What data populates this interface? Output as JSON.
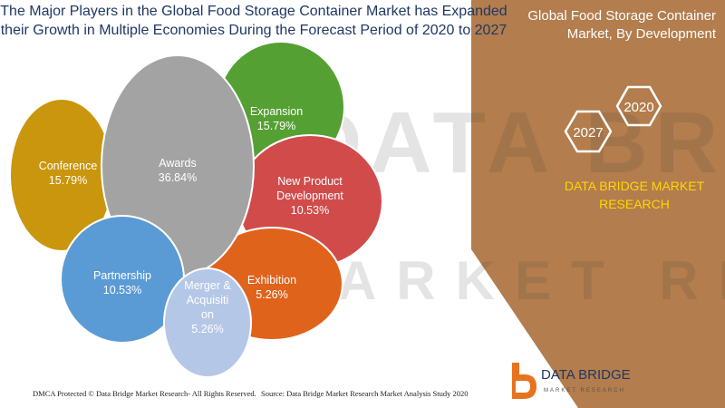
{
  "title_lines": [
    "The Major Players in the Global Food Storage Container Market has Expanded",
    "their Growth in Multiple Economies During the Forecast Period of 2020 to 2027"
  ],
  "side_title_lines": [
    "Global Food Storage Container",
    "Market, By Development"
  ],
  "year_badges": [
    "2020",
    "2027"
  ],
  "research_lines": [
    "DATA BRIDGE MARKET",
    "RESEARCH"
  ],
  "watermark": {
    "line1": "DATA BRIDGE",
    "line2": "MARKET RESEARCH"
  },
  "logo": {
    "name": "DATA BRIDGE",
    "tagline": "MARKET RESEARCH"
  },
  "footer": {
    "left": "DMCA Protected © Data Bridge Market Research- All Rights Reserved.",
    "right": "Source: Data Bridge Market Research Market Analysis Study 2020"
  },
  "colors": {
    "panel": "#b37d4d",
    "title": "#1f3864",
    "gold": "#ffd700"
  },
  "chart_data": {
    "type": "bubble",
    "unit": "%",
    "categories": [
      "Expansion",
      "Conference",
      "Awards",
      "New Product Development",
      "Exhibition",
      "Partnership",
      "Merger & Acquisition"
    ],
    "values": [
      15.79,
      15.79,
      36.84,
      10.53,
      5.26,
      10.53,
      5.26
    ],
    "labels": [
      {
        "category": "Expansion",
        "lines": [
          "Expansion",
          "15.79%"
        ],
        "color": "#55a033"
      },
      {
        "category": "Conference",
        "lines": [
          "Conference",
          "15.79%"
        ],
        "color": "#c9960d"
      },
      {
        "category": "Awards",
        "lines": [
          "Awards",
          "36.84%"
        ],
        "color": "#a3a3a3"
      },
      {
        "category": "New Product Development",
        "lines": [
          "New Product",
          "Development",
          "10.53%"
        ],
        "color": "#d24b4b"
      },
      {
        "category": "Exhibition",
        "lines": [
          "Exhibition",
          "5.26%"
        ],
        "color": "#e0631c"
      },
      {
        "category": "Partnership",
        "lines": [
          "Partnership",
          "10.53%"
        ],
        "color": "#5b9bd5"
      },
      {
        "category": "Merger & Acquisition",
        "lines": [
          "Merger &",
          "Acquisiti",
          "on",
          "5.26%"
        ],
        "color": "#b4c7e7"
      }
    ]
  }
}
